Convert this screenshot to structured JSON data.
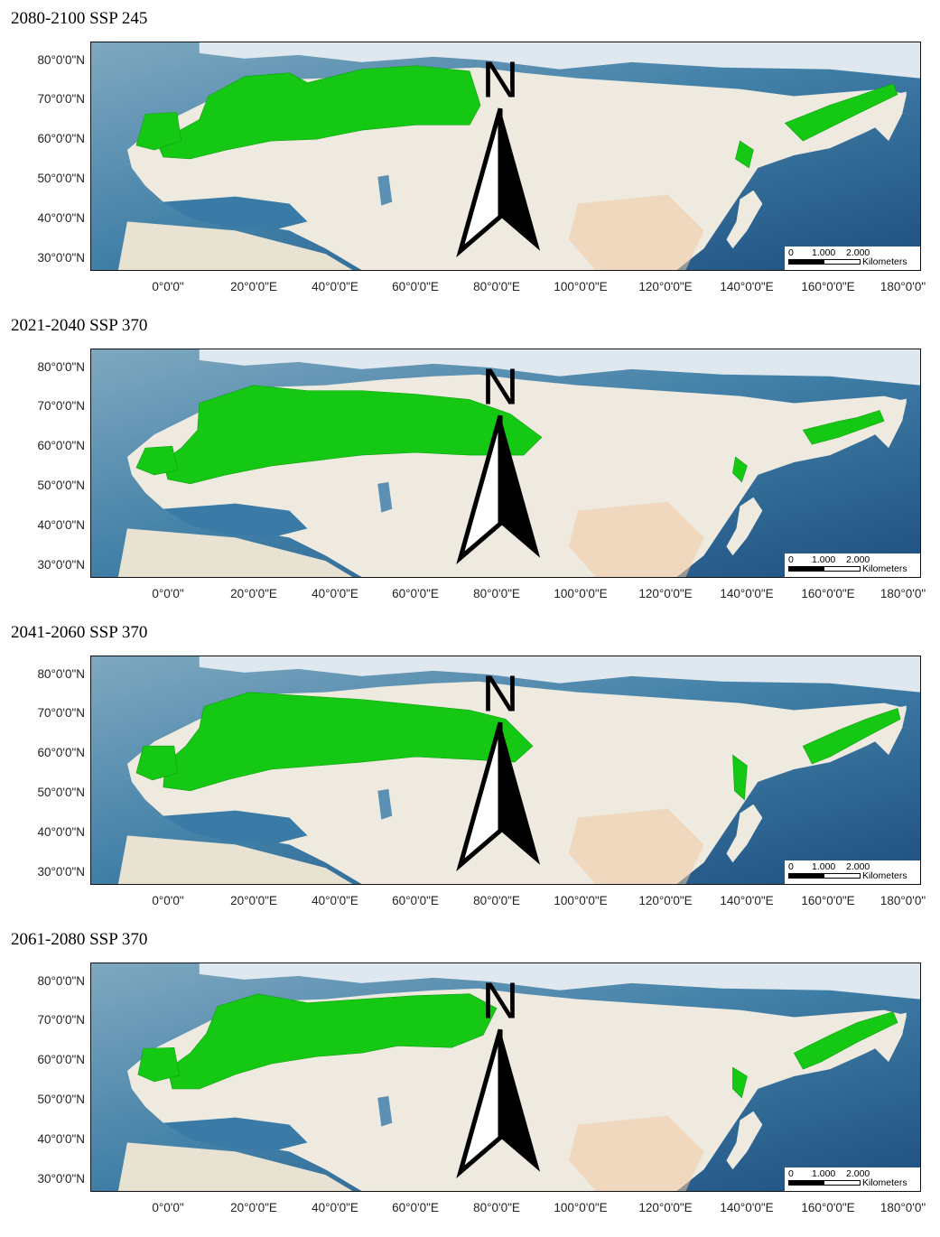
{
  "panels": [
    {
      "title": "2080-2100 SSP 245",
      "scenario": "SSP 245",
      "period": "2080-2100"
    },
    {
      "title": "2021-2040 SSP 370",
      "scenario": "SSP 370",
      "period": "2021-2040"
    },
    {
      "title": "2041-2060 SSP 370",
      "scenario": "SSP 370",
      "period": "2041-2060"
    },
    {
      "title": "2061-2080 SSP 370",
      "scenario": "SSP 370",
      "period": "2061-2080"
    }
  ],
  "latitude_labels": [
    "80°0'0\"N",
    "70°0'0\"N",
    "60°0'0\"N",
    "50°0'0\"N",
    "40°0'0\"N",
    "30°0'0\"N"
  ],
  "longitude_labels": [
    "0°0'0\"",
    "20°0'0\"E",
    "40°0'0\"E",
    "60°0'0\"E",
    "80°0'0\"E",
    "100°0'0\"E",
    "120°0'0\"E",
    "140°0'0\"E",
    "160°0'0\"E",
    "180°0'0\""
  ],
  "scale_bar": {
    "ticks": [
      "0",
      "1.000",
      "2.000"
    ],
    "unit": "Kilometers"
  },
  "north_arrow": {
    "label": "N",
    "icon": "north-arrow-icon"
  },
  "colors": {
    "suitable_area": "#14c814",
    "ocean": "#2e6e96",
    "land": "#eeeadf",
    "frame": "#111111"
  }
}
